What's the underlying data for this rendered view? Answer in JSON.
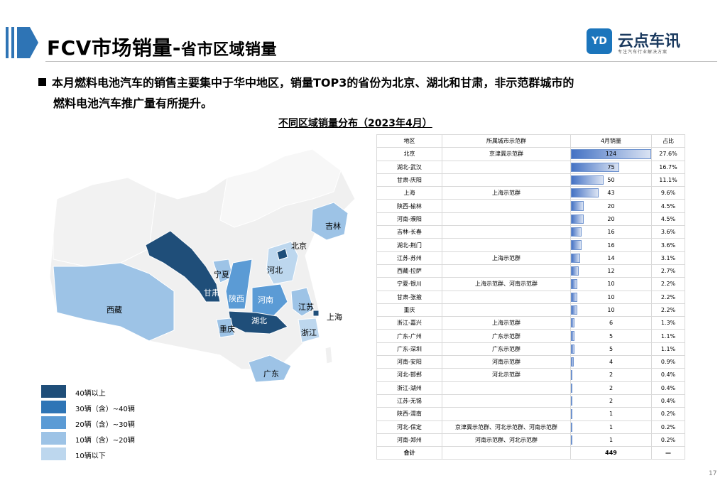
{
  "header": {
    "title_main": "FCV市场销量-",
    "title_sub": "省市区域销量",
    "accent_color": "#2e74b5"
  },
  "logo": {
    "mark": "YD",
    "name": "云点车讯",
    "tagline": "专注汽车行业解决方案"
  },
  "summary": {
    "line1": "本月燃料电池汽车的销售主要集中于华中地区，销量TOP3的省份为北京、湖北和甘肃，非示范群城市的",
    "line2": "燃料电池汽车推广量有所提升。"
  },
  "table_title": "不同区域销量分布（2023年4月）",
  "table": {
    "headers": [
      "地区",
      "所属城市示范群",
      "4月销量",
      "占比"
    ],
    "rows": [
      {
        "region": "北京",
        "group": "京津冀示范群",
        "sales": 124,
        "share": "27.6%"
      },
      {
        "region": "湖北-武汉",
        "group": "",
        "sales": 75,
        "share": "16.7%"
      },
      {
        "region": "甘肃-庆阳",
        "group": "",
        "sales": 50,
        "share": "11.1%"
      },
      {
        "region": "上海",
        "group": "上海示范群",
        "sales": 43,
        "share": "9.6%"
      },
      {
        "region": "陕西-榆林",
        "group": "",
        "sales": 20,
        "share": "4.5%"
      },
      {
        "region": "河南-濮阳",
        "group": "",
        "sales": 20,
        "share": "4.5%"
      },
      {
        "region": "吉林-长春",
        "group": "",
        "sales": 16,
        "share": "3.6%"
      },
      {
        "region": "湖北-荆门",
        "group": "",
        "sales": 16,
        "share": "3.6%"
      },
      {
        "region": "江苏-苏州",
        "group": "上海示范群",
        "sales": 14,
        "share": "3.1%"
      },
      {
        "region": "西藏-拉萨",
        "group": "",
        "sales": 12,
        "share": "2.7%"
      },
      {
        "region": "宁夏-银川",
        "group": "上海示范群、河南示范群",
        "sales": 10,
        "share": "2.2%"
      },
      {
        "region": "甘肃-张掖",
        "group": "",
        "sales": 10,
        "share": "2.2%"
      },
      {
        "region": "重庆",
        "group": "",
        "sales": 10,
        "share": "2.2%"
      },
      {
        "region": "浙江-嘉兴",
        "group": "上海示范群",
        "sales": 6,
        "share": "1.3%"
      },
      {
        "region": "广东-广州",
        "group": "广东示范群",
        "sales": 5,
        "share": "1.1%"
      },
      {
        "region": "广东-深圳",
        "group": "广东示范群",
        "sales": 5,
        "share": "1.1%"
      },
      {
        "region": "河南-安阳",
        "group": "河南示范群",
        "sales": 4,
        "share": "0.9%"
      },
      {
        "region": "河北-邯郸",
        "group": "河北示范群",
        "sales": 2,
        "share": "0.4%"
      },
      {
        "region": "浙江-湖州",
        "group": "",
        "sales": 2,
        "share": "0.4%"
      },
      {
        "region": "江苏-无锡",
        "group": "",
        "sales": 2,
        "share": "0.4%"
      },
      {
        "region": "陕西-渭南",
        "group": "",
        "sales": 1,
        "share": "0.2%"
      },
      {
        "region": "河北-保定",
        "group": "京津冀示范群、河北示范群、河南示范群",
        "sales": 1,
        "share": "0.2%"
      },
      {
        "region": "河南-郑州",
        "group": "河南示范群、河北示范群",
        "sales": 1,
        "share": "0.2%"
      }
    ],
    "total": {
      "label": "合计",
      "sales": 449,
      "share": "—"
    },
    "bar_max": 124
  },
  "map": {
    "labels": {
      "jilin": "吉林",
      "beijing": "北京",
      "hebei": "河北",
      "ningxia": "宁夏",
      "gansu": "甘肃",
      "shaanxi": "陕西",
      "henan": "河南",
      "jiangsu": "江苏",
      "shanghai": "上海",
      "xizang": "西藏",
      "hubei": "湖北",
      "chongqing": "重庆",
      "zhejiang": "浙江",
      "guangdong": "广东"
    },
    "colors": {
      "tier1": "#1f4e79",
      "tier2": "#2e75b6",
      "tier3": "#5b9bd5",
      "tier4": "#9dc3e6",
      "tier5": "#bdd7ee",
      "base": "#f0f0f0"
    }
  },
  "legend": [
    {
      "label": "40辆以上",
      "color": "#1f4e79"
    },
    {
      "label": "30辆（含）~40辆",
      "color": "#2e75b6"
    },
    {
      "label": "20辆（含）~30辆",
      "color": "#5b9bd5"
    },
    {
      "label": "10辆（含）~20辆",
      "color": "#9dc3e6"
    },
    {
      "label": "10辆以下",
      "color": "#bdd7ee"
    }
  ],
  "page_number": "17"
}
